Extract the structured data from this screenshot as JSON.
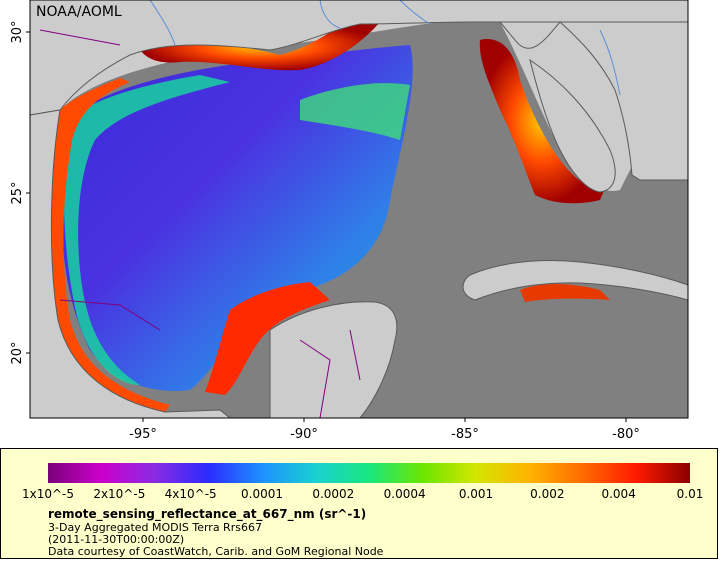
{
  "map": {
    "agency_label": "NOAA/AOML",
    "lat_ticks": [
      "30°",
      "25°",
      "20°"
    ],
    "lon_ticks": [
      "-95°",
      "-90°",
      "-85°",
      "-80°"
    ],
    "colors": {
      "land": "#cccccc",
      "nodata": "#808080",
      "coast": "#5a5a5a",
      "borders": "#800080",
      "rivers": "#5b8fd6"
    }
  },
  "legend": {
    "ticks": [
      "1x10^-5",
      "2x10^-5",
      "4x10^-5",
      "0.0001",
      "0.0002",
      "0.0004",
      "0.001",
      "0.002",
      "0.004",
      "0.01"
    ],
    "variable": "remote_sensing_reflectance_at_667_nm (sr^-1)",
    "line1": "3-Day Aggregated MODIS Terra Rrs667",
    "line2": "(2011-11-30T00:00:00Z)",
    "line3": "Data courtesy of CoastWatch, Carib. and GoM Regional Node",
    "colormap": [
      "#7a007a",
      "#cc00cc",
      "#8a2be2",
      "#2b2bff",
      "#1e90ff",
      "#19d1d1",
      "#19e67f",
      "#6be600",
      "#d4e600",
      "#ffb300",
      "#ff6a00",
      "#ff1a00",
      "#8b0000"
    ],
    "background": "#ffffcc"
  }
}
